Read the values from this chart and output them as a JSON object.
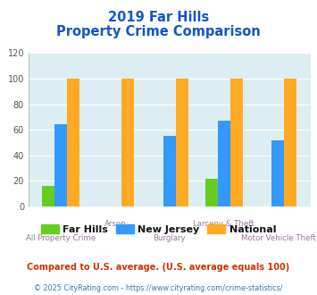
{
  "title_line1": "2019 Far Hills",
  "title_line2": "Property Crime Comparison",
  "categories": [
    "All Property Crime",
    "Arson",
    "Burglary",
    "Larceny & Theft",
    "Motor Vehicle Theft"
  ],
  "far_hills": [
    16,
    0,
    0,
    22,
    0
  ],
  "new_jersey": [
    64,
    0,
    55,
    67,
    52
  ],
  "national": [
    100,
    100,
    100,
    100,
    100
  ],
  "color_far_hills": "#66cc22",
  "color_new_jersey": "#3399ff",
  "color_national": "#ffaa22",
  "ylim": [
    0,
    120
  ],
  "yticks": [
    0,
    20,
    40,
    60,
    80,
    100,
    120
  ],
  "legend_labels": [
    "Far Hills",
    "New Jersey",
    "National"
  ],
  "footnote1": "Compared to U.S. average. (U.S. average equals 100)",
  "footnote2": "© 2025 CityRating.com - https://www.cityrating.com/crime-statistics/",
  "background_color": "#ddeef2",
  "title_color": "#1155cc",
  "bar_width": 0.23
}
